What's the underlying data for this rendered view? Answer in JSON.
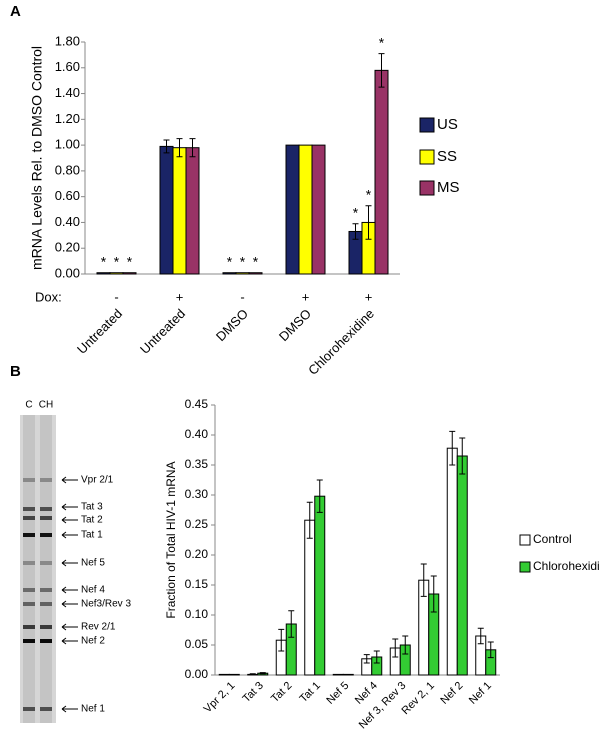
{
  "chart_data": [
    {
      "type": "bar",
      "panel": "A",
      "ylabel": "mRNA Levels Rel. to DMSO Control",
      "categories": [
        "Untreated",
        "Untreated",
        "DMSO",
        "DMSO",
        "Chlorohexidine"
      ],
      "dox_label": "Dox:",
      "dox": [
        "-",
        "+",
        "-",
        "+",
        "+"
      ],
      "ylim": [
        0,
        1.8
      ],
      "yticks": [
        {
          "value": 0,
          "label": "0.00"
        },
        {
          "value": 0.2,
          "label": "0.20"
        },
        {
          "value": 0.4,
          "label": "0.40"
        },
        {
          "value": 0.6,
          "label": "0.60"
        },
        {
          "value": 0.8,
          "label": "0.80"
        },
        {
          "value": 1.0,
          "label": "1.00"
        },
        {
          "value": 1.2,
          "label": "1.20"
        },
        {
          "value": 1.4,
          "label": "1.40"
        },
        {
          "value": 1.6,
          "label": "1.60"
        },
        {
          "value": 1.8,
          "label": "1.80"
        }
      ],
      "series": [
        {
          "name": "US",
          "color": "#1a2466",
          "values": [
            0.01,
            0.99,
            0.01,
            1.0,
            0.33
          ],
          "errors": [
            0,
            0.05,
            0,
            0,
            0.06
          ],
          "significance": [
            "*",
            null,
            "*",
            null,
            "*"
          ]
        },
        {
          "name": "SS",
          "color": "#ffff00",
          "values": [
            0.01,
            0.98,
            0.01,
            1.0,
            0.4
          ],
          "errors": [
            0,
            0.07,
            0,
            0,
            0.13
          ],
          "significance": [
            "*",
            null,
            "*",
            null,
            "*"
          ]
        },
        {
          "name": "MS",
          "color": "#993366",
          "values": [
            0.01,
            0.98,
            0.01,
            1.0,
            1.58
          ],
          "errors": [
            0,
            0.07,
            0,
            0,
            0.13
          ],
          "significance": [
            "*",
            null,
            "*",
            null,
            "*"
          ]
        }
      ]
    },
    {
      "type": "bar",
      "panel": "B",
      "ylabel": "Fraction of Total HIV-1 mRNA",
      "categories": [
        "Vpr 2, 1",
        "Tat 3",
        "Tat 2",
        "Tat 1",
        "Nef 5",
        "Nef 4",
        "Nef 3, Rev 3",
        "Rev 2, 1",
        "Nef 2",
        "Nef 1"
      ],
      "ylim": [
        0,
        0.45
      ],
      "yticks": [
        {
          "value": 0,
          "label": "0.00"
        },
        {
          "value": 0.05,
          "label": "0.05"
        },
        {
          "value": 0.1,
          "label": "0.10"
        },
        {
          "value": 0.15,
          "label": "0.15"
        },
        {
          "value": 0.2,
          "label": "0.20"
        },
        {
          "value": 0.25,
          "label": "0.25"
        },
        {
          "value": 0.3,
          "label": "0.30"
        },
        {
          "value": 0.35,
          "label": "0.35"
        },
        {
          "value": 0.4,
          "label": "0.40"
        },
        {
          "value": 0.45,
          "label": "0.45"
        }
      ],
      "series": [
        {
          "name": "Control",
          "color": "#ffffff",
          "values": [
            0.001,
            0.001,
            0.058,
            0.258,
            0.001,
            0.027,
            0.045,
            0.158,
            0.378,
            0.065
          ],
          "errors": [
            0,
            0.001,
            0.018,
            0.03,
            0,
            0.007,
            0.015,
            0.027,
            0.028,
            0.013
          ]
        },
        {
          "name": "Chlorohexidine",
          "color": "#33cc33",
          "values": [
            0.001,
            0.003,
            0.085,
            0.298,
            0.001,
            0.03,
            0.05,
            0.135,
            0.365,
            0.042
          ],
          "errors": [
            0,
            0.001,
            0.022,
            0.027,
            0,
            0.01,
            0.015,
            0.03,
            0.03,
            0.013
          ]
        }
      ]
    }
  ],
  "gel": {
    "lanes": [
      "C",
      "CH"
    ],
    "bands": [
      "Vpr 2/1",
      "Tat 3",
      "Tat 2",
      "Tat 1",
      "Nef 5",
      "Nef 4",
      "Nef3/Rev 3",
      "Rev 2/1",
      "Nef 2",
      "Nef 1"
    ]
  }
}
